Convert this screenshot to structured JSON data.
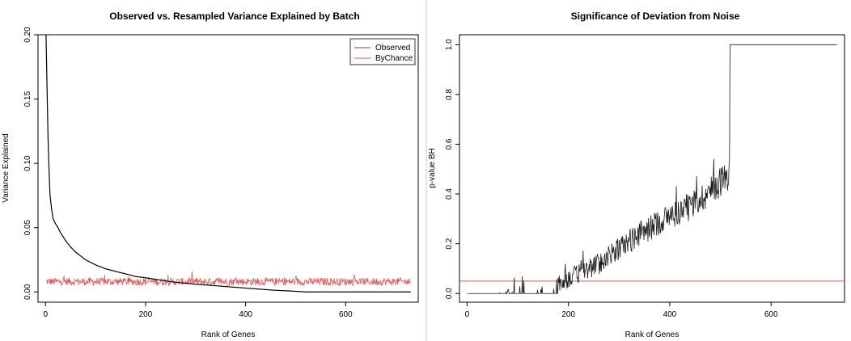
{
  "chart_data": [
    {
      "type": "line",
      "title": "Observed vs. Resampled Variance Explained by Batch",
      "xlabel": "Rank of Genes",
      "ylabel": "Variance Explained",
      "xlim": [
        -15,
        745
      ],
      "ylim": [
        -0.008,
        0.2
      ],
      "x_ticks": [
        0,
        200,
        400,
        600
      ],
      "x_tick_labels": [
        "0",
        "200",
        "400",
        "600"
      ],
      "y_ticks": [
        0.0,
        0.05,
        0.1,
        0.15,
        0.2
      ],
      "y_tick_labels": [
        "0.00",
        "0.05",
        "0.10",
        "0.15",
        "0.20"
      ],
      "grid": false,
      "legend": {
        "position": "top-right",
        "entries": [
          {
            "label": "Observed",
            "color": "#555555"
          },
          {
            "label": "ByChance",
            "color": "#e05555"
          }
        ]
      },
      "series": [
        {
          "name": "Observed",
          "color": "#000000",
          "x": [
            1,
            3,
            5,
            7,
            9,
            12,
            15,
            20,
            25,
            30,
            40,
            50,
            60,
            70,
            80,
            100,
            120,
            150,
            180,
            200,
            250,
            300,
            350,
            400,
            450,
            500,
            520,
            600,
            700,
            730
          ],
          "values": [
            0.2,
            0.16,
            0.12,
            0.095,
            0.075,
            0.065,
            0.057,
            0.053,
            0.05,
            0.046,
            0.04,
            0.035,
            0.031,
            0.028,
            0.025,
            0.021,
            0.018,
            0.015,
            0.012,
            0.011,
            0.008,
            0.006,
            0.0045,
            0.003,
            0.0015,
            0.0005,
            0.0,
            0.0,
            0.0,
            0.0
          ]
        },
        {
          "name": "ByChance",
          "color": "#e05555",
          "x_range": [
            1,
            730
          ],
          "mean": 0.008,
          "noise_range": [
            0.004,
            0.016
          ]
        }
      ]
    },
    {
      "type": "line",
      "title": "Significance of Deviation from Noise",
      "xlabel": "Rank of Genes",
      "ylabel": "p-value BH",
      "xlim": [
        -15,
        745
      ],
      "ylim": [
        -0.035,
        1.04
      ],
      "x_ticks": [
        0,
        200,
        400,
        600
      ],
      "x_tick_labels": [
        "0",
        "200",
        "400",
        "600"
      ],
      "y_ticks": [
        0.0,
        0.2,
        0.4,
        0.6,
        0.8,
        1.0
      ],
      "y_tick_labels": [
        "0.0",
        "0.2",
        "0.4",
        "0.6",
        "0.8",
        "1.0"
      ],
      "grid": false,
      "reference_line": {
        "y": 0.05,
        "color": "#e05555"
      },
      "series": [
        {
          "name": "",
          "color": "#1a1a1a",
          "x": [
            1,
            60,
            100,
            140,
            160,
            180,
            200,
            220,
            240,
            260,
            280,
            300,
            320,
            340,
            360,
            380,
            400,
            420,
            440,
            460,
            480,
            500,
            515,
            518,
            520,
            600,
            700,
            730
          ],
          "values": [
            0.0,
            0.0,
            0.01,
            0.02,
            0.03,
            0.04,
            0.06,
            0.08,
            0.1,
            0.12,
            0.15,
            0.18,
            0.21,
            0.24,
            0.26,
            0.29,
            0.31,
            0.33,
            0.35,
            0.38,
            0.41,
            0.45,
            0.48,
            0.5,
            1.0,
            1.0,
            1.0,
            1.0
          ],
          "noise_amplitude": 0.06
        }
      ]
    }
  ]
}
